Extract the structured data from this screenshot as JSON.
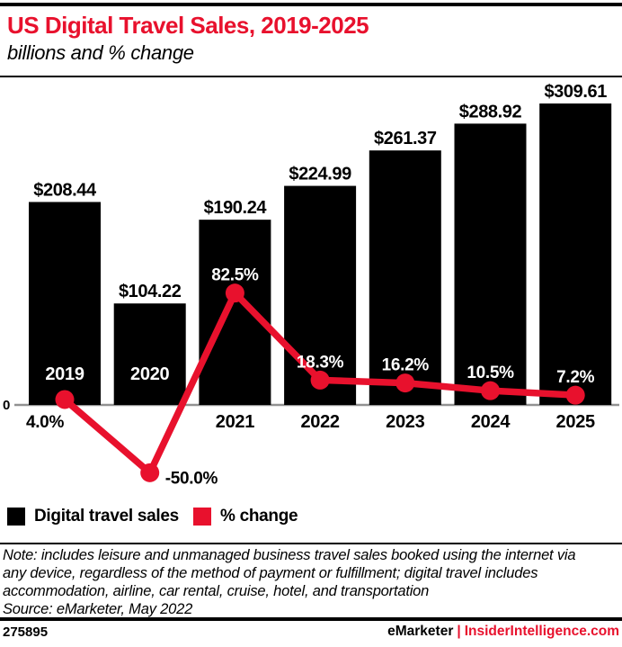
{
  "header": {
    "title": "US Digital Travel Sales, 2019-2025",
    "subtitle": "billions and % change"
  },
  "chart_data": {
    "type": "bar",
    "subtype": "bar-line-combo",
    "title": "US Digital Travel Sales, 2019-2025",
    "subtitle": "billions and % change",
    "categories": [
      "2019",
      "2020",
      "2021",
      "2022",
      "2023",
      "2024",
      "2025"
    ],
    "series": [
      {
        "name": "Digital travel sales",
        "type": "bar",
        "unit": "billions USD",
        "values": [
          208.44,
          104.22,
          190.24,
          224.99,
          261.37,
          288.92,
          309.61
        ],
        "labels": [
          "$208.44",
          "$104.22",
          "$190.24",
          "$224.99",
          "$261.37",
          "$288.92",
          "$309.61"
        ]
      },
      {
        "name": "% change",
        "type": "line",
        "unit": "percent",
        "values": [
          4.0,
          -50.0,
          82.5,
          18.3,
          16.2,
          10.5,
          7.2
        ],
        "labels": [
          "4.0%",
          "-50.0%",
          "82.5%",
          "18.3%",
          "16.2%",
          "10.5%",
          "7.2%"
        ]
      }
    ],
    "axis": {
      "zero_label": "0",
      "y_baseline": 0,
      "gridlines": false
    },
    "colors": {
      "bar": "#000000",
      "line": "#e8112d",
      "axis": "#919191"
    },
    "legend_position": "bottom-left",
    "layout_hints": {
      "year_label_inside_bar": [
        true,
        true,
        false,
        false,
        false,
        false,
        false
      ],
      "pct_label_position": [
        "below-axis",
        "right-of-point",
        "above-point",
        "above-point",
        "above-point",
        "above-point",
        "above-point"
      ]
    }
  },
  "legend": {
    "items": [
      {
        "label": "Digital travel sales",
        "color": "#000000"
      },
      {
        "label": "% change",
        "color": "#e8112d"
      }
    ]
  },
  "note": {
    "lines": [
      "Note: includes leisure and unmanaged business travel sales booked using the internet via",
      "any device, regardless of the method of payment or fulfillment; digital travel includes",
      "accommodation, airline, car rental, cruise, hotel, and transportation",
      "Source: eMarketer, May 2022"
    ]
  },
  "footer": {
    "chart_id": "275895",
    "brand_left": "eMarketer",
    "separator": "|",
    "brand_right": "InsiderIntelligence.com"
  }
}
